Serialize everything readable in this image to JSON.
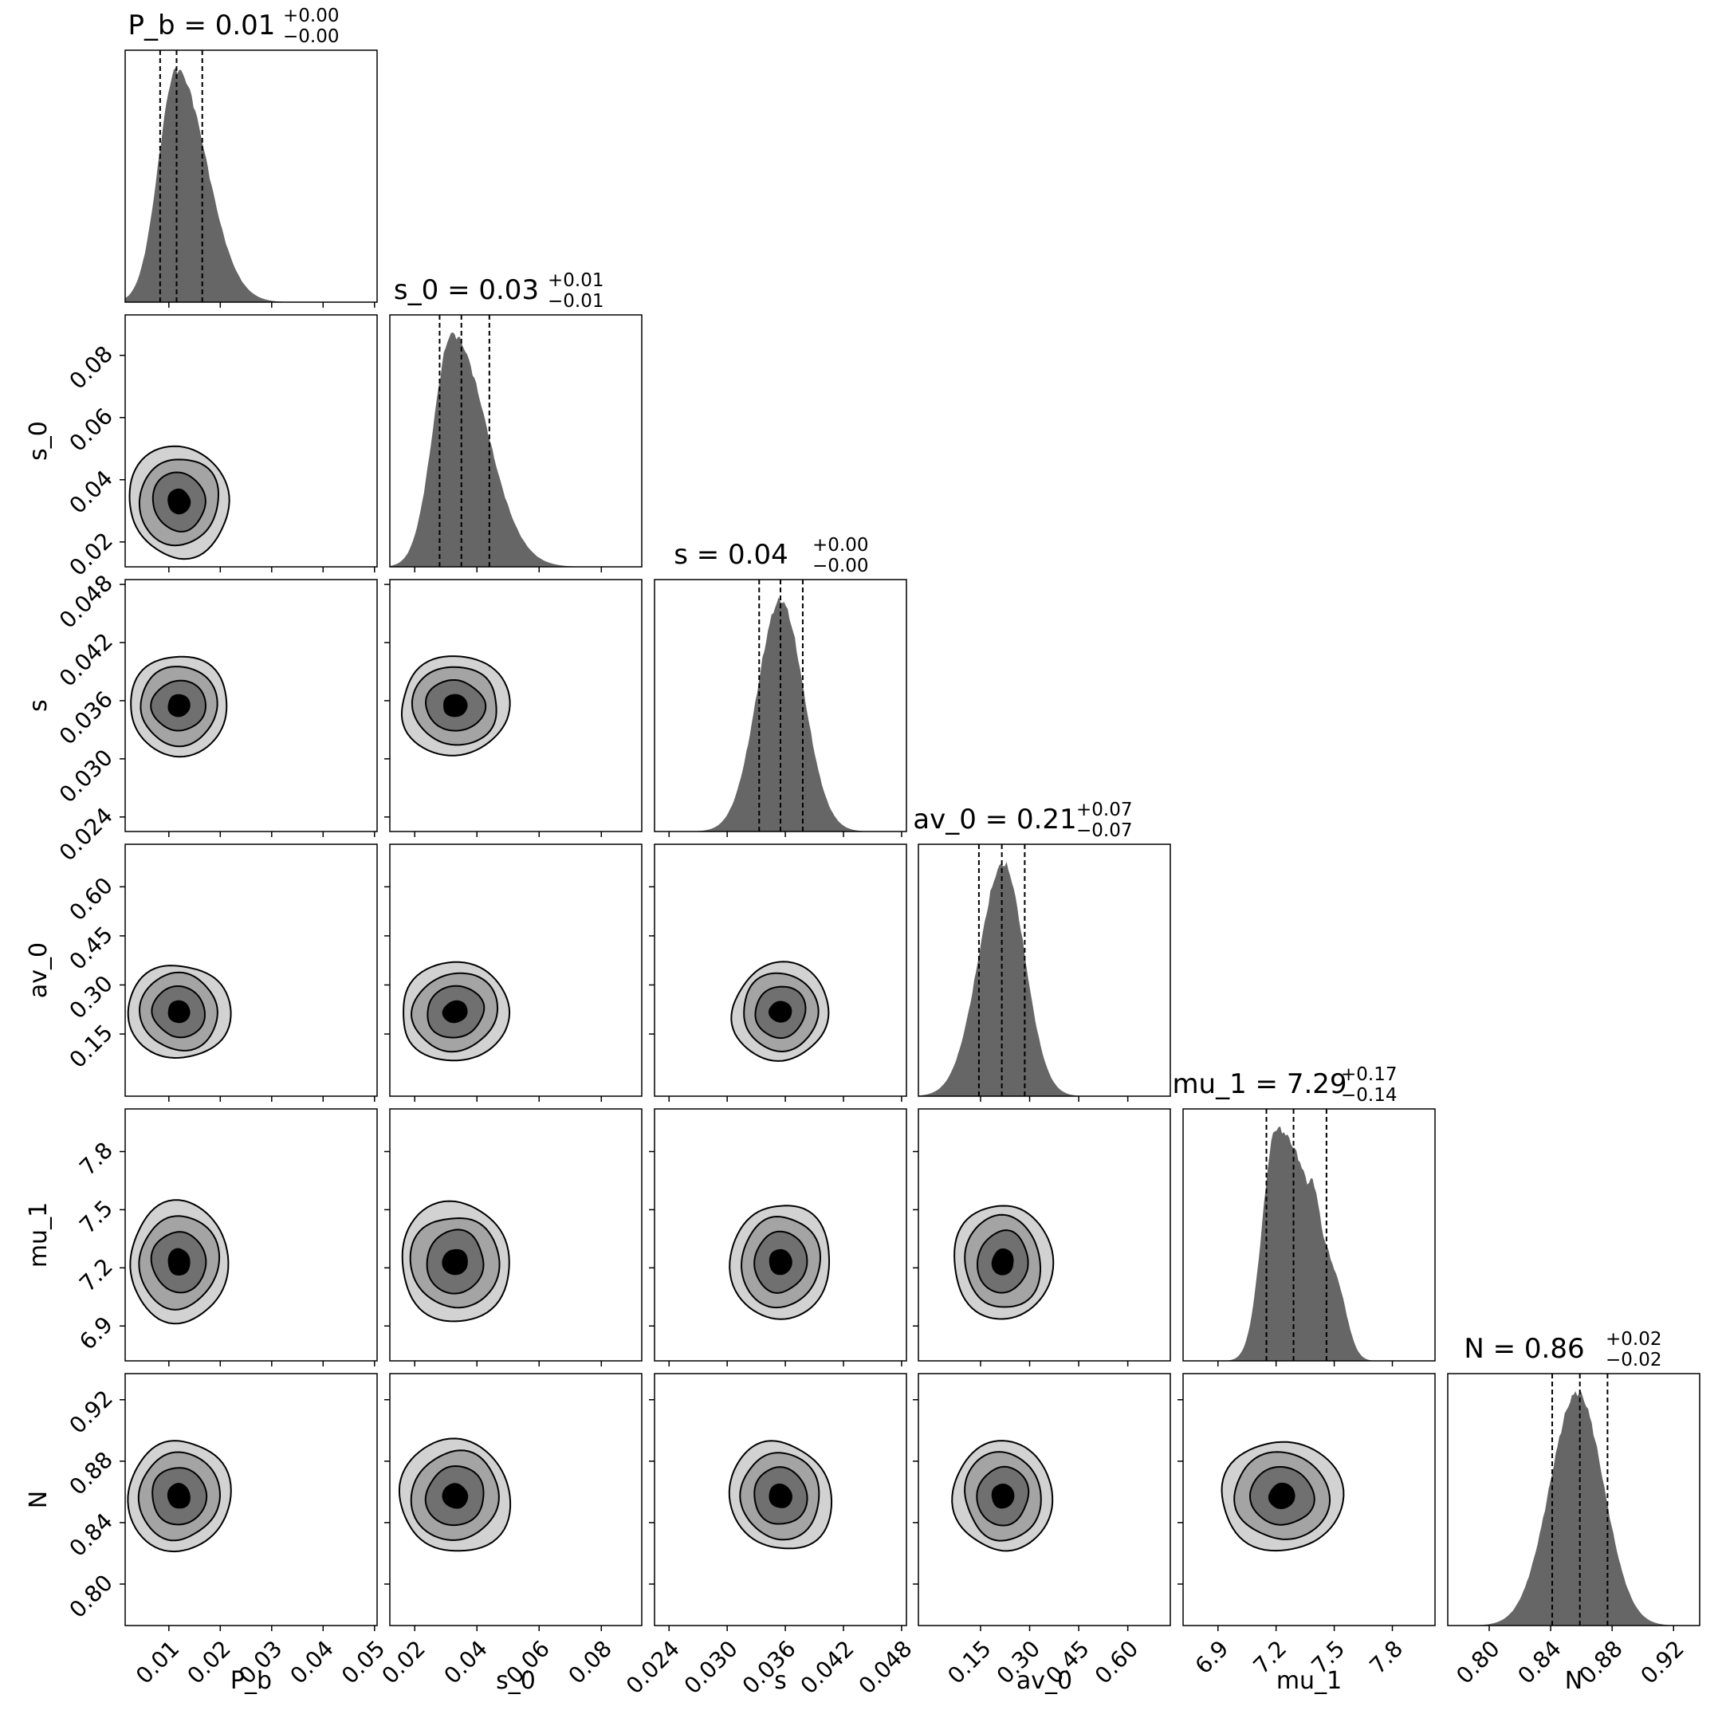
{
  "chart_data": {
    "type": "corner",
    "parameters": [
      {
        "name": "P_b",
        "label": "P_b",
        "median": "0.01",
        "plus": "+0.00",
        "minus": "−0.00",
        "range": [
          0.0015,
          0.0505
        ],
        "ticks": [
          0.01,
          0.02,
          0.03,
          0.04,
          0.05
        ],
        "tick_labels": [
          "0.01",
          "0.02",
          "0.03",
          "0.04",
          "0.05"
        ],
        "peak": 0.0115,
        "sigma_left": 0.0035,
        "sigma_right": 0.0058,
        "quantiles": [
          0.0083,
          0.0115,
          0.0165
        ]
      },
      {
        "name": "s_0",
        "label": "s_0",
        "median": "0.03",
        "plus": "+0.01",
        "minus": "−0.01",
        "range": [
          0.012,
          0.093
        ],
        "ticks": [
          0.02,
          0.04,
          0.06,
          0.08
        ],
        "tick_labels": [
          "0.02",
          "0.04",
          "0.06",
          "0.08"
        ],
        "peak": 0.032,
        "sigma_left": 0.006,
        "sigma_right": 0.011,
        "quantiles": [
          0.028,
          0.035,
          0.044
        ]
      },
      {
        "name": "s",
        "label": "s",
        "median": "0.04",
        "plus": "+0.00",
        "minus": "−0.00",
        "range": [
          0.0225,
          0.0485
        ],
        "ticks": [
          0.024,
          0.03,
          0.036,
          0.042,
          0.048
        ],
        "tick_labels": [
          "0.024",
          "0.030",
          "0.036",
          "0.042",
          "0.048"
        ],
        "peak": 0.0355,
        "sigma_left": 0.0024,
        "sigma_right": 0.0024,
        "quantiles": [
          0.0333,
          0.0355,
          0.0378
        ]
      },
      {
        "name": "av_0",
        "label": "av_0",
        "median": "0.21",
        "plus": "+0.07",
        "minus": "−0.07",
        "range": [
          -0.04,
          0.73
        ],
        "ticks": [
          0.15,
          0.3,
          0.45,
          0.6
        ],
        "tick_labels": [
          "0.15",
          "0.30",
          "0.45",
          "0.60"
        ],
        "peak": 0.22,
        "sigma_left": 0.075,
        "sigma_right": 0.065,
        "quantiles": [
          0.145,
          0.215,
          0.285
        ]
      },
      {
        "name": "mu_1",
        "label": "mu_1",
        "median": "7.29",
        "plus": "+0.17",
        "minus": "−0.14",
        "range": [
          6.72,
          8.02
        ],
        "ticks": [
          6.9,
          7.2,
          7.5,
          7.8
        ],
        "tick_labels": [
          "6.9",
          "7.2",
          "7.5",
          "7.8"
        ],
        "peak": 7.2,
        "sigma_left": 0.07,
        "sigma_right": 0.22,
        "quantiles": [
          7.15,
          7.29,
          7.46
        ]
      },
      {
        "name": "N",
        "label": "N",
        "median": "0.86",
        "plus": "+0.02",
        "minus": "−0.02",
        "range": [
          0.773,
          0.937
        ],
        "ticks": [
          0.8,
          0.84,
          0.88,
          0.92
        ],
        "tick_labels": [
          "0.80",
          "0.84",
          "0.88",
          "0.92"
        ],
        "peak": 0.8575,
        "sigma_left": 0.018,
        "sigma_right": 0.017,
        "quantiles": [
          0.841,
          0.859,
          0.877
        ]
      }
    ],
    "contour_levels": 4,
    "histogram_color": "#666666",
    "contour_fill_colors": [
      "#d2d2d2",
      "#a4a4a4",
      "#707070",
      "#000000"
    ],
    "quantile_line_style": "dashed",
    "grid": false
  }
}
